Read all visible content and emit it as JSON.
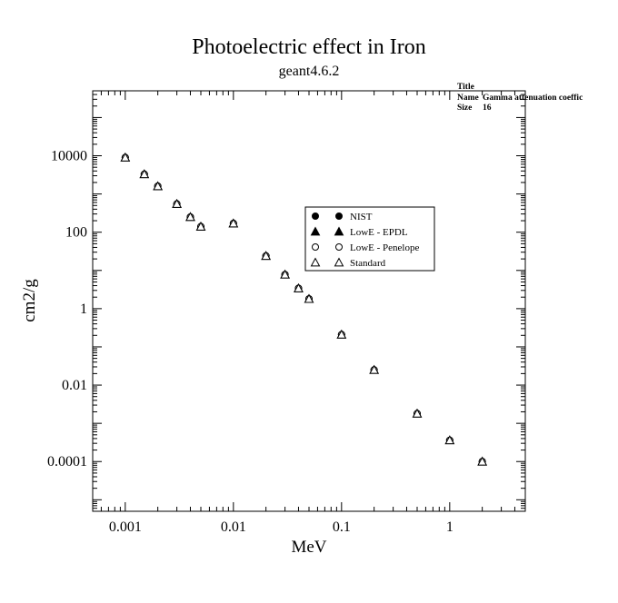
{
  "chart_data": {
    "type": "scatter",
    "title": "Photoelectric effect in Iron",
    "subtitle": "geant4.6.2",
    "xlabel": "MeV",
    "ylabel": "cm2/g",
    "xscale": "log",
    "yscale": "log",
    "xlim": [
      0.0005,
      5
    ],
    "ylim": [
      5e-06,
      500000
    ],
    "xticks": [
      {
        "value": 0.001,
        "label": "0.001"
      },
      {
        "value": 0.01,
        "label": "0.01"
      },
      {
        "value": 0.1,
        "label": "0.1"
      },
      {
        "value": 1,
        "label": "1"
      }
    ],
    "yticks": [
      {
        "value": 10000,
        "label": "10000"
      },
      {
        "value": 100,
        "label": "100"
      },
      {
        "value": 1,
        "label": "1"
      },
      {
        "value": 0.01,
        "label": "0.01"
      },
      {
        "value": 0.0001,
        "label": "0.0001"
      }
    ],
    "legend_position": "center-right",
    "series": [
      {
        "name": "NIST",
        "marker": "filled-circle",
        "x": [
          0.001,
          0.0015,
          0.002,
          0.003,
          0.004,
          0.005,
          0.01,
          0.02,
          0.03,
          0.04,
          0.05,
          0.1,
          0.2,
          0.5,
          1,
          2
        ],
        "y": [
          9000,
          3300,
          1600,
          550,
          250,
          140,
          170,
          24,
          7.8,
          3.4,
          1.8,
          0.21,
          0.025,
          0.0018,
          0.00036,
          0.0001
        ]
      },
      {
        "name": "LowE - EPDL",
        "marker": "filled-triangle",
        "x": [
          0.001,
          0.0015,
          0.002,
          0.003,
          0.004,
          0.005,
          0.01,
          0.02,
          0.03,
          0.04,
          0.05,
          0.1,
          0.2,
          0.5,
          1,
          2
        ],
        "y": [
          9000,
          3300,
          1600,
          550,
          250,
          140,
          170,
          24,
          7.8,
          3.4,
          1.8,
          0.21,
          0.025,
          0.0018,
          0.00036,
          0.0001
        ]
      },
      {
        "name": "LowE - Penelope",
        "marker": "open-circle",
        "x": [
          0.001,
          0.0015,
          0.002,
          0.003,
          0.004,
          0.005,
          0.01,
          0.02,
          0.03,
          0.04,
          0.05,
          0.1,
          0.2,
          0.5,
          1,
          2
        ],
        "y": [
          9000,
          3300,
          1600,
          550,
          250,
          140,
          170,
          24,
          7.8,
          3.4,
          1.8,
          0.21,
          0.025,
          0.0018,
          0.00036,
          0.0001
        ]
      },
      {
        "name": "Standard",
        "marker": "open-triangle",
        "x": [
          0.001,
          0.0015,
          0.002,
          0.003,
          0.004,
          0.005,
          0.01,
          0.02,
          0.03,
          0.04,
          0.05,
          0.1,
          0.2,
          0.5,
          1,
          2
        ],
        "y": [
          9000,
          3300,
          1600,
          550,
          250,
          140,
          170,
          24,
          7.8,
          3.4,
          1.8,
          0.21,
          0.025,
          0.0018,
          0.00036,
          0.0001
        ]
      }
    ]
  },
  "stats_box": {
    "title_label": "Title",
    "name_label": "Name",
    "name_value": "Gamma attenuation coeffic",
    "size_label": "Size",
    "size_value": "16"
  }
}
